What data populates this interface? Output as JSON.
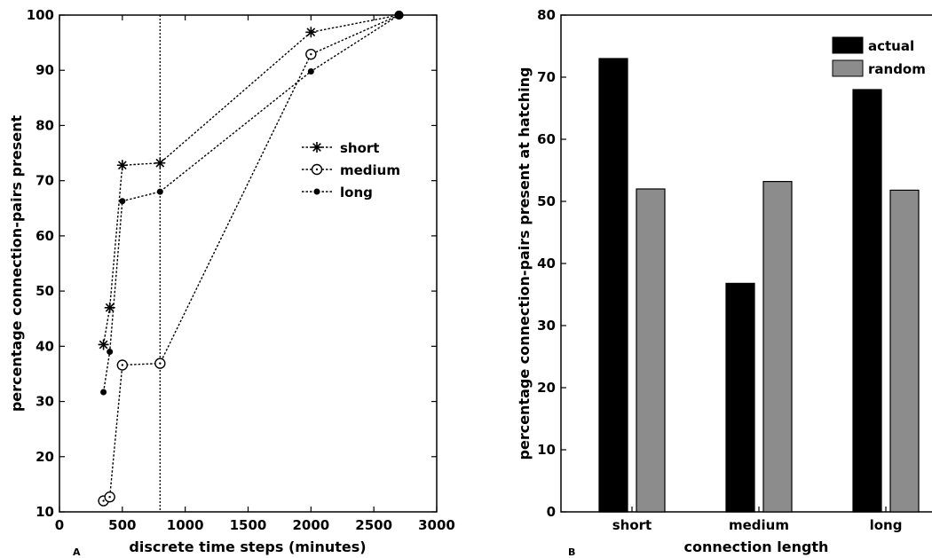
{
  "figure": {
    "panel_a_label": "A",
    "panel_b_label": "B"
  },
  "chart_data": [
    {
      "type": "line",
      "xlabel": "discrete time steps (minutes)",
      "ylabel": "percentage connection-pairs present",
      "xlim": [
        0,
        3000
      ],
      "ylim": [
        10,
        100
      ],
      "xticks": [
        0,
        500,
        1000,
        1500,
        2000,
        2500,
        3000
      ],
      "yticks": [
        10,
        20,
        30,
        40,
        50,
        60,
        70,
        80,
        90,
        100
      ],
      "vline_x": 800,
      "legend_position": "right",
      "series": [
        {
          "name": "short",
          "marker": "asterisk",
          "x": [
            350,
            400,
            500,
            800,
            2000,
            2700
          ],
          "y": [
            40.3,
            47,
            72.8,
            73.2,
            96.9,
            100
          ]
        },
        {
          "name": "medium",
          "marker": "open-circle",
          "x": [
            350,
            400,
            500,
            800,
            2000,
            2700
          ],
          "y": [
            12,
            12.7,
            36.6,
            36.9,
            92.9,
            100
          ]
        },
        {
          "name": "long",
          "marker": "dot",
          "x": [
            350,
            400,
            500,
            800,
            2000,
            2700
          ],
          "y": [
            31.7,
            39,
            66.3,
            68,
            89.8,
            100
          ]
        }
      ]
    },
    {
      "type": "bar",
      "xlabel": "connection length",
      "ylabel": "percentage connection-pairs present at hatching",
      "ylim": [
        0,
        80
      ],
      "yticks": [
        0,
        10,
        20,
        30,
        40,
        50,
        60,
        70,
        80
      ],
      "categories": [
        "short",
        "medium",
        "long"
      ],
      "legend_position": "top-right",
      "series": [
        {
          "name": "actual",
          "color": "#000000",
          "values": [
            73,
            36.8,
            68
          ]
        },
        {
          "name": "random",
          "color": "#8c8c8c",
          "values": [
            52,
            53.2,
            51.8
          ]
        }
      ]
    }
  ]
}
